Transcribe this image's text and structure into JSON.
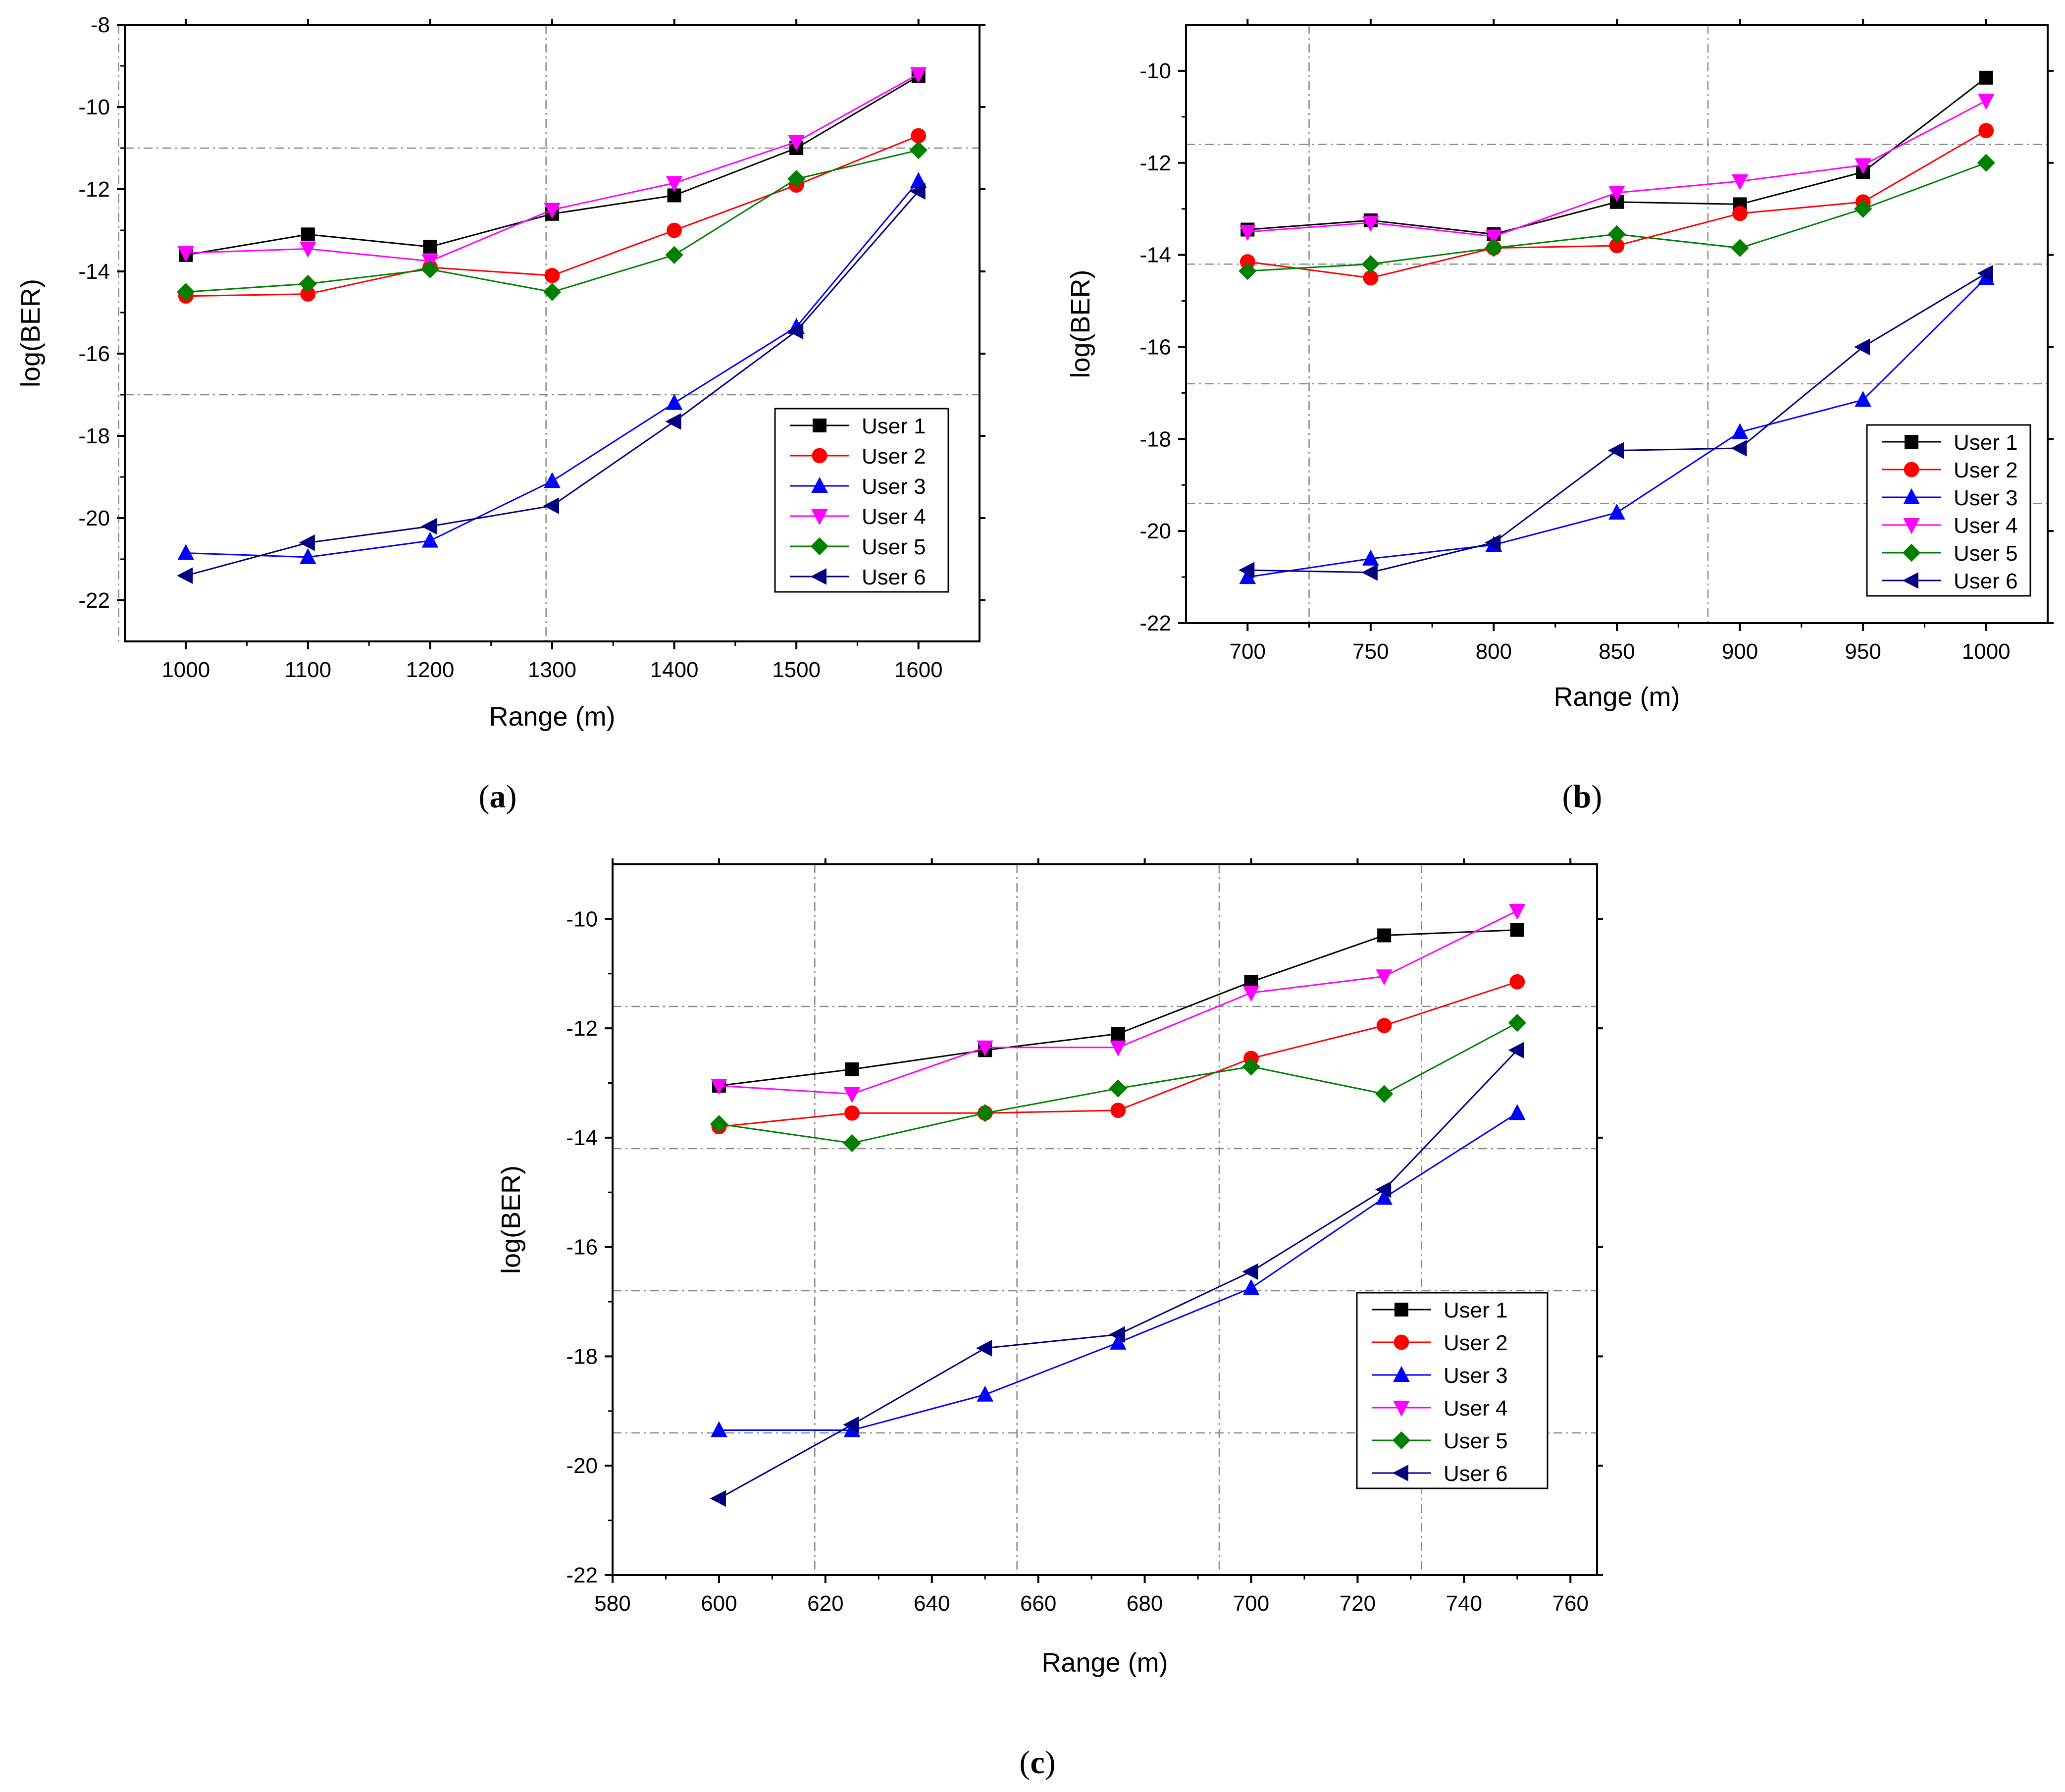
{
  "figure": {
    "series_styles": [
      {
        "name": "User 1",
        "color": "#000000",
        "marker": "square"
      },
      {
        "name": "User 2",
        "color": "#ff0000",
        "marker": "circle"
      },
      {
        "name": "User 3",
        "color": "#0000ff",
        "marker": "triangle-up"
      },
      {
        "name": "User 4",
        "color": "#ff00ff",
        "marker": "triangle-down"
      },
      {
        "name": "User 5",
        "color": "#008000",
        "marker": "diamond"
      },
      {
        "name": "User 6",
        "color": "#000080",
        "marker": "triangle-left"
      }
    ]
  },
  "chart_data": [
    {
      "type": "line",
      "caption": "a",
      "xlabel": "Range (m)",
      "ylabel": "log(BER)",
      "xlim": [
        950,
        1650
      ],
      "ylim": [
        -23,
        -8
      ],
      "xticks": [
        1000,
        1100,
        1200,
        1300,
        1400,
        1500,
        1600
      ],
      "yticks": [
        -22,
        -20,
        -18,
        -16,
        -14,
        -12,
        -10,
        -8
      ],
      "x": [
        1000,
        1100,
        1200,
        1300,
        1400,
        1500,
        1600
      ],
      "series": [
        {
          "name": "User 1",
          "values": [
            -13.6,
            -13.1,
            -13.4,
            -12.6,
            -12.15,
            -11.0,
            -9.25
          ]
        },
        {
          "name": "User 2",
          "values": [
            -14.6,
            -14.55,
            -13.9,
            -14.1,
            -13.0,
            -11.9,
            -10.7
          ]
        },
        {
          "name": "User 3",
          "values": [
            -20.85,
            -20.95,
            -20.55,
            -19.1,
            -17.2,
            -15.35,
            -11.8
          ]
        },
        {
          "name": "User 4",
          "values": [
            -13.55,
            -13.45,
            -13.75,
            -12.5,
            -11.85,
            -10.85,
            -9.2
          ]
        },
        {
          "name": "User 5",
          "values": [
            -14.5,
            -14.3,
            -13.95,
            -14.5,
            -13.6,
            -11.75,
            -11.05
          ]
        },
        {
          "name": "User 6",
          "values": [
            -21.4,
            -20.6,
            -20.2,
            -19.7,
            -17.65,
            -15.45,
            -12.05
          ]
        }
      ],
      "legend": "lower-right"
    },
    {
      "type": "line",
      "caption": "b",
      "xlabel": "Range (m)",
      "ylabel": "log(BER)",
      "xlim": [
        675,
        1025
      ],
      "ylim": [
        -22,
        -9
      ],
      "xticks": [
        700,
        750,
        800,
        850,
        900,
        950,
        1000
      ],
      "yticks": [
        -22,
        -20,
        -18,
        -16,
        -14,
        -12,
        -10
      ],
      "x": [
        700,
        750,
        800,
        850,
        900,
        950,
        1000
      ],
      "series": [
        {
          "name": "User 1",
          "values": [
            -13.45,
            -13.25,
            -13.55,
            -12.85,
            -12.9,
            -12.2,
            -10.15
          ]
        },
        {
          "name": "User 2",
          "values": [
            -14.15,
            -14.5,
            -13.85,
            -13.8,
            -13.1,
            -12.85,
            -11.3
          ]
        },
        {
          "name": "User 3",
          "values": [
            -21.0,
            -20.6,
            -20.3,
            -19.6,
            -17.85,
            -17.15,
            -14.5
          ]
        },
        {
          "name": "User 4",
          "values": [
            -13.5,
            -13.3,
            -13.6,
            -12.65,
            -12.4,
            -12.05,
            -10.65
          ]
        },
        {
          "name": "User 5",
          "values": [
            -14.35,
            -14.2,
            -13.85,
            -13.55,
            -13.85,
            -13.0,
            -12.0
          ]
        },
        {
          "name": "User 6",
          "values": [
            -20.85,
            -20.9,
            -20.25,
            -18.25,
            -18.2,
            -16.0,
            -14.4
          ]
        }
      ],
      "legend": "lower-right"
    },
    {
      "type": "line",
      "caption": "c",
      "xlabel": "Range (m)",
      "ylabel": "log(BER)",
      "xlim": [
        580,
        765
      ],
      "ylim": [
        -22,
        -9
      ],
      "xticks": [
        580,
        600,
        620,
        640,
        660,
        680,
        700,
        720,
        740,
        760
      ],
      "yticks": [
        -22,
        -20,
        -18,
        -16,
        -14,
        -12,
        -10
      ],
      "x": [
        600,
        625,
        650,
        675,
        700,
        725,
        750
      ],
      "series": [
        {
          "name": "User 1",
          "values": [
            -13.05,
            -12.75,
            -12.4,
            -12.1,
            -11.15,
            -10.3,
            -10.2
          ]
        },
        {
          "name": "User 2",
          "values": [
            -13.8,
            -13.55,
            -13.55,
            -13.5,
            -12.55,
            -11.95,
            -11.15
          ]
        },
        {
          "name": "User 3",
          "values": [
            -19.35,
            -19.35,
            -18.7,
            -17.75,
            -16.75,
            -15.1,
            -13.55
          ]
        },
        {
          "name": "User 4",
          "values": [
            -13.05,
            -13.2,
            -12.35,
            -12.35,
            -11.35,
            -11.05,
            -9.85
          ]
        },
        {
          "name": "User 5",
          "values": [
            -13.75,
            -14.1,
            -13.55,
            -13.1,
            -12.7,
            -13.2,
            -11.9
          ]
        },
        {
          "name": "User 6",
          "values": [
            -20.6,
            -19.25,
            -17.85,
            -17.6,
            -16.45,
            -14.95,
            -12.4
          ]
        }
      ],
      "legend": "lower-right"
    }
  ]
}
